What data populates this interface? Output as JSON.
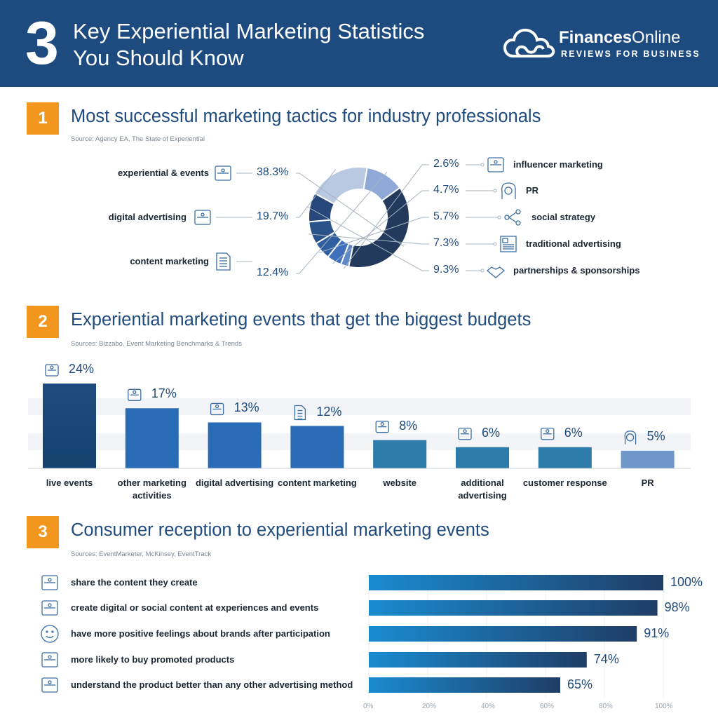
{
  "header": {
    "number": "3",
    "title_line1": "Key Experiential Marketing Statistics",
    "title_line2": "You Should Know",
    "brand_bold": "Finances",
    "brand_rest": "Online",
    "tagline": "REVIEWS FOR BUSINESS"
  },
  "colors": {
    "header_bg": "#1d4a7f",
    "section_badge": "#f3961d",
    "title_text": "#1f4b7e"
  },
  "sections": [
    {
      "number": "1",
      "title": "Most successful marketing tactics for industry professionals",
      "source": "Source: Agency EA, The State of Experiential"
    },
    {
      "number": "2",
      "title": "Experiential marketing events that get the biggest budgets",
      "source": "Sources: Bizzabo, Event Marketing Benchmarks & Trends"
    },
    {
      "number": "3",
      "title": "Consumer reception to experiential marketing events",
      "source": "Sources: EventMarketer, McKinsey, EventTrack"
    }
  ],
  "chart_data": [
    {
      "type": "pie",
      "categories": [
        "experiential & events",
        "digital advertising",
        "content marketing",
        "influencer marketing",
        "PR",
        "social strategy",
        "traditional advertising",
        "partnerships & sponsorships"
      ],
      "values": [
        38.3,
        19.7,
        12.4,
        2.6,
        4.7,
        5.7,
        7.3,
        9.3
      ],
      "value_labels": [
        "38.3%",
        "19.7%",
        "12.4%",
        "2.6%",
        "4.7%",
        "5.7%",
        "7.3%",
        "9.3%"
      ],
      "icons": [
        "event-stage-icon",
        "phone-megaphone-icon",
        "document-icon",
        "influencer-icon",
        "pr-head-icon",
        "social-network-icon",
        "newspaper-icon",
        "handshake-icon"
      ],
      "colors": [
        "#233a5c",
        "#b9c9e2",
        "#8ea9d6",
        "#5e87c8",
        "#3f70bb",
        "#2f5f9e",
        "#2a5389",
        "#27477a"
      ],
      "donut": true
    },
    {
      "type": "bar",
      "categories": [
        "live events",
        "other marketing activities",
        "digital advertising",
        "content marketing",
        "website",
        "additional advertising",
        "customer response",
        "PR"
      ],
      "values": [
        24,
        17,
        13,
        12,
        8,
        6,
        6,
        5
      ],
      "value_labels": [
        "24%",
        "17%",
        "13%",
        "12%",
        "8%",
        "6%",
        "6%",
        "5%"
      ],
      "icons": [
        "livestream-icon",
        "network-gear-icon",
        "megaphone-screen-icon",
        "document-icon",
        "browser-icon",
        "billboard-icon",
        "rating-stars-icon",
        "pr-head-icon"
      ],
      "colors": [
        "#1f4b7e",
        "#2a6bb5",
        "#2a6bb5",
        "#2a6bb5",
        "#2d7ba8",
        "#2d7ba8",
        "#2d7ba8",
        "#6f98c9"
      ],
      "ylim": [
        0,
        24
      ]
    },
    {
      "type": "bar",
      "orientation": "horizontal",
      "categories": [
        "share the content they create",
        "create digital or social content at experiences and events",
        "have more positive feelings about brands after participation",
        "more likely to buy promoted products",
        "understand the product better than any other advertising method"
      ],
      "values": [
        100,
        98,
        91,
        74,
        65
      ],
      "value_labels": [
        "100%",
        "98%",
        "91%",
        "74%",
        "65%"
      ],
      "icons": [
        "share-photo-icon",
        "people-content-icon",
        "smiley-icon",
        "shopping-bag-icon",
        "product-info-icon"
      ],
      "xlim": [
        0,
        100
      ],
      "x_ticks": [
        "0%",
        "20%",
        "40%",
        "60%",
        "80%",
        "100%"
      ]
    }
  ]
}
